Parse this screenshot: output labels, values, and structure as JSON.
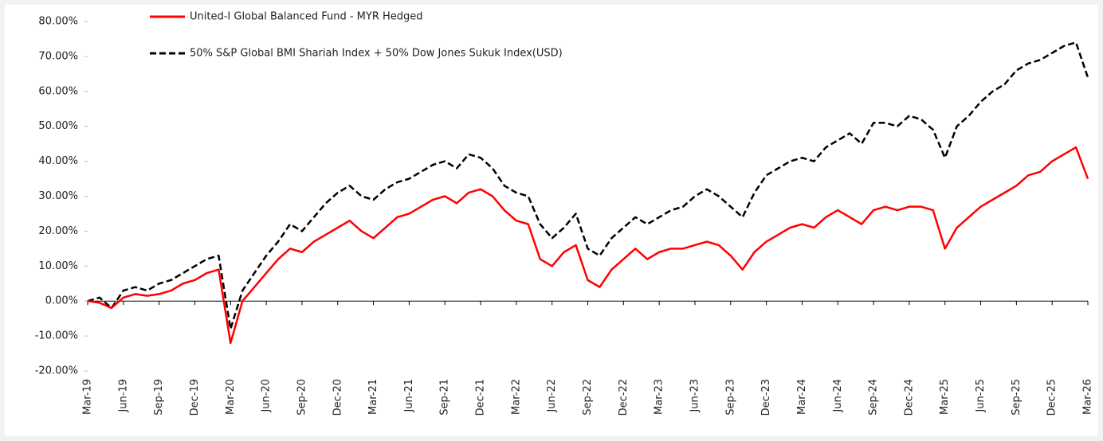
{
  "chart_data": {
    "type": "line",
    "legend_location": "upper center",
    "categories": [
      "Mar-19",
      null,
      null,
      "Jun-19",
      null,
      null,
      "Sep-19",
      null,
      null,
      "Dec-19",
      null,
      null,
      "Mar-20",
      null,
      null,
      "Jun-20",
      null,
      null,
      "Sep-20",
      null,
      null,
      "Dec-20",
      null,
      null,
      "Mar-21",
      null,
      null,
      "Jun-21",
      null,
      null,
      "Sep-21",
      null,
      null,
      "Dec-21",
      null,
      null,
      "Mar-22",
      null,
      null,
      "Jun-22",
      null,
      null,
      "Sep-22",
      null,
      null,
      "Dec-22",
      null,
      null,
      "Mar-23",
      null,
      null,
      "Jun-23",
      null,
      null,
      "Sep-23",
      null,
      null,
      "Dec-23",
      null,
      null,
      "Mar-24",
      null,
      null,
      "Jun-24",
      null,
      null,
      "Sep-24",
      null,
      null,
      "Dec-24",
      null,
      null,
      "Mar-25",
      null,
      null,
      "Jun-25",
      null,
      null,
      "Sep-25",
      null,
      null,
      "Dec-25",
      null,
      null,
      "Mar-26"
    ],
    "series": [
      {
        "name": "United-I Global Balanced Fund - MYR Hedged",
        "color": "#ff0000",
        "dashed": false,
        "values": [
          0,
          -0.5,
          -2,
          1,
          2,
          1.5,
          2,
          3,
          5,
          6,
          8,
          9,
          -12,
          0,
          4,
          8,
          12,
          15,
          14,
          17,
          19,
          21,
          23,
          20,
          18,
          21,
          24,
          25,
          27,
          29,
          30,
          28,
          31,
          32,
          30,
          26,
          23,
          22,
          12,
          10,
          14,
          16,
          6,
          4,
          9,
          12,
          15,
          12,
          14,
          15,
          15,
          16,
          17,
          16,
          13,
          9,
          14,
          17,
          19,
          21,
          22,
          21,
          24,
          26,
          24,
          22,
          26,
          27,
          26,
          27,
          27,
          26,
          15,
          21,
          24,
          27,
          29,
          31,
          33,
          36,
          37,
          40,
          42,
          44,
          35
        ]
      },
      {
        "name": "50% S&P Global BMI Shariah Index + 50% Dow Jones Sukuk Index(USD)",
        "color": "#000000",
        "dashed": true,
        "values": [
          0,
          1,
          -2,
          3,
          4,
          3,
          5,
          6,
          8,
          10,
          12,
          13,
          -8,
          3,
          8,
          13,
          17,
          22,
          20,
          24,
          28,
          31,
          33,
          30,
          29,
          32,
          34,
          35,
          37,
          39,
          40,
          38,
          42,
          41,
          38,
          33,
          31,
          30,
          22,
          18,
          21,
          25,
          15,
          13,
          18,
          21,
          24,
          22,
          24,
          26,
          27,
          30,
          32,
          30,
          27,
          24,
          31,
          36,
          38,
          40,
          41,
          40,
          44,
          46,
          48,
          45,
          51,
          51,
          50,
          53,
          52,
          49,
          41,
          50,
          53,
          57,
          60,
          62,
          66,
          68,
          69,
          71,
          73,
          74,
          64
        ]
      }
    ],
    "ylim": [
      -20,
      80
    ],
    "yticks": [
      {
        "value": -20,
        "label": "-20.00%"
      },
      {
        "value": -10,
        "label": "-10.00%"
      },
      {
        "value": 0,
        "label": "0.00%"
      },
      {
        "value": 10,
        "label": "10.00%"
      },
      {
        "value": 20,
        "label": "20.00%"
      },
      {
        "value": 30,
        "label": "30.00%"
      },
      {
        "value": 40,
        "label": "40.00%"
      },
      {
        "value": 50,
        "label": "50.00%"
      },
      {
        "value": 60,
        "label": "60.00%"
      },
      {
        "value": 70,
        "label": "70.00%"
      },
      {
        "value": 80,
        "label": "80.00%"
      }
    ],
    "grid": false
  }
}
